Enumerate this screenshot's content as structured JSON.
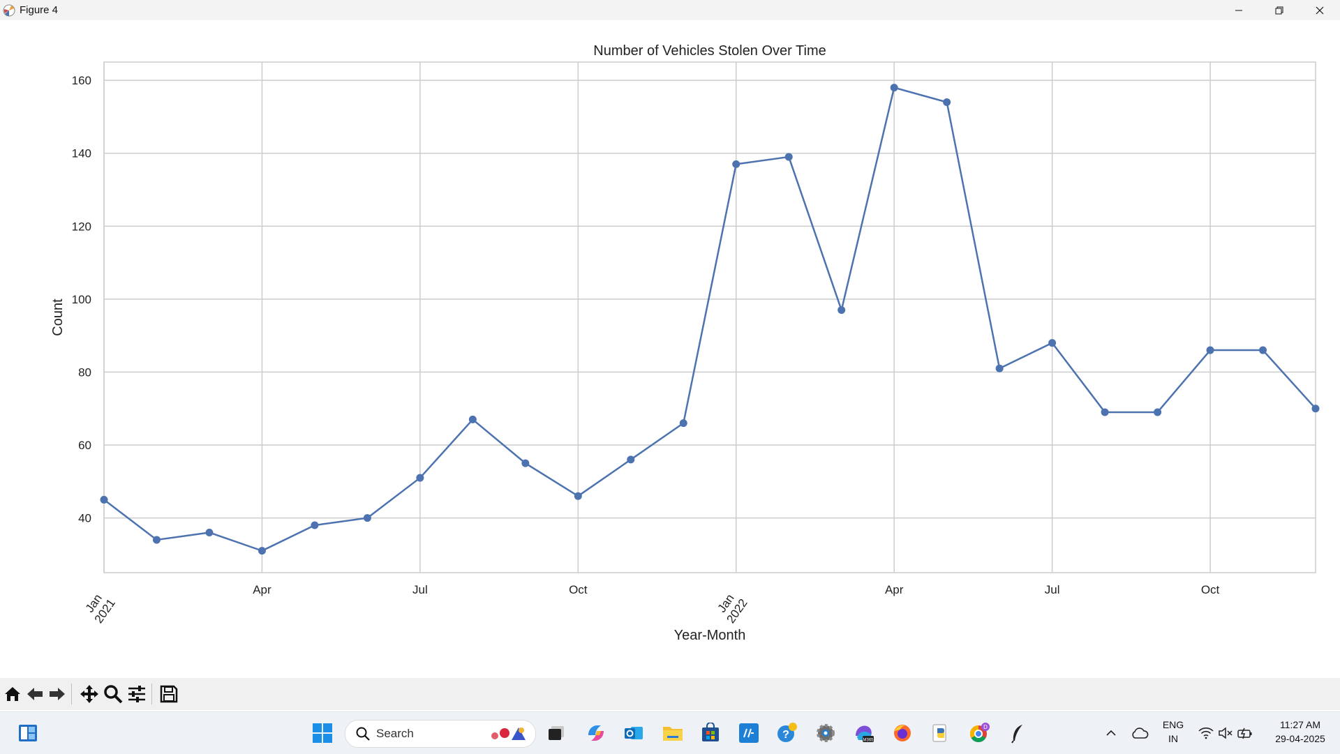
{
  "window": {
    "title": "Figure 4"
  },
  "colors": {
    "line": "#4c72b0",
    "grid": "#cccccc",
    "axes": "#cccccc",
    "toolbar": "#f0f0f0",
    "taskbar": "#eef1f6"
  },
  "toolbar": {
    "buttons": [
      "home-icon",
      "back-arrow-icon",
      "forward-arrow-icon",
      "pan-move-icon",
      "zoom-magnifier-icon",
      "subplots-sliders-icon",
      "save-floppy-icon"
    ]
  },
  "taskbar": {
    "search_label": "Search",
    "language": "ENG",
    "region": "IN",
    "time": "11:27 AM",
    "date": "29-04-2025",
    "apps": [
      "widgets-icon",
      "start-icon",
      "task-view-icon",
      "copilot-icon",
      "outlook-icon",
      "file-explorer-icon",
      "store-icon",
      "myhp-icon",
      "help-icon",
      "settings-icon",
      "m365-icon",
      "firefox-icon",
      "python-icon",
      "chrome-icon",
      "feather-app-icon"
    ]
  },
  "chart_data": {
    "type": "line",
    "title": "Number of Vehicles Stolen Over Time",
    "xlabel": "Year-Month",
    "ylabel": "Count",
    "x": [
      "2021-01",
      "2021-02",
      "2021-03",
      "2021-04",
      "2021-05",
      "2021-06",
      "2021-07",
      "2021-08",
      "2021-09",
      "2021-10",
      "2021-11",
      "2021-12",
      "2022-01",
      "2022-02",
      "2022-03",
      "2022-04",
      "2022-05",
      "2022-06",
      "2022-07",
      "2022-08",
      "2022-09",
      "2022-10",
      "2022-11",
      "2022-12"
    ],
    "series": [
      {
        "values": [
          45,
          34,
          36,
          31,
          38,
          40,
          51,
          67,
          55,
          46,
          56,
          66,
          137,
          139,
          97,
          158,
          154,
          81,
          88,
          69,
          69,
          86,
          86,
          70
        ]
      }
    ],
    "xlim": [
      "2021-01",
      "2022-12"
    ],
    "ylim": [
      25,
      165
    ],
    "yticks": [
      40,
      60,
      80,
      100,
      120,
      140,
      160
    ],
    "xticks": [
      {
        "x": "2021-01",
        "label": "Jan",
        "year": "2021"
      },
      {
        "x": "2021-04",
        "label": "Apr"
      },
      {
        "x": "2021-07",
        "label": "Jul"
      },
      {
        "x": "2021-10",
        "label": "Oct"
      },
      {
        "x": "2022-01",
        "label": "Jan",
        "year": "2022"
      },
      {
        "x": "2022-04",
        "label": "Apr"
      },
      {
        "x": "2022-07",
        "label": "Jul"
      },
      {
        "x": "2022-10",
        "label": "Oct"
      }
    ],
    "grid": true,
    "markers": "circle"
  }
}
